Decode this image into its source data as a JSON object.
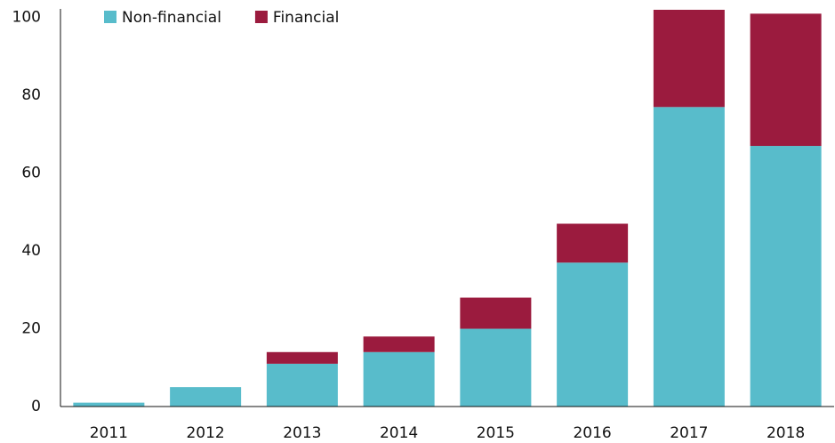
{
  "chart_data": {
    "type": "stacked_bar",
    "categories": [
      "2011",
      "2012",
      "2013",
      "2014",
      "2015",
      "2016",
      "2017",
      "2018"
    ],
    "series": [
      {
        "name": "Non-financial",
        "color": "#58bccb",
        "values": [
          1,
          5,
          11,
          14,
          20,
          37,
          77,
          67
        ]
      },
      {
        "name": "Financial",
        "color": "#9b1b3e",
        "values": [
          0,
          0,
          3,
          4,
          8,
          10,
          25,
          34
        ]
      }
    ],
    "ylim": [
      0,
      102
    ],
    "yticks": [
      0,
      20,
      40,
      60,
      80,
      100
    ],
    "legend": "top-left"
  }
}
